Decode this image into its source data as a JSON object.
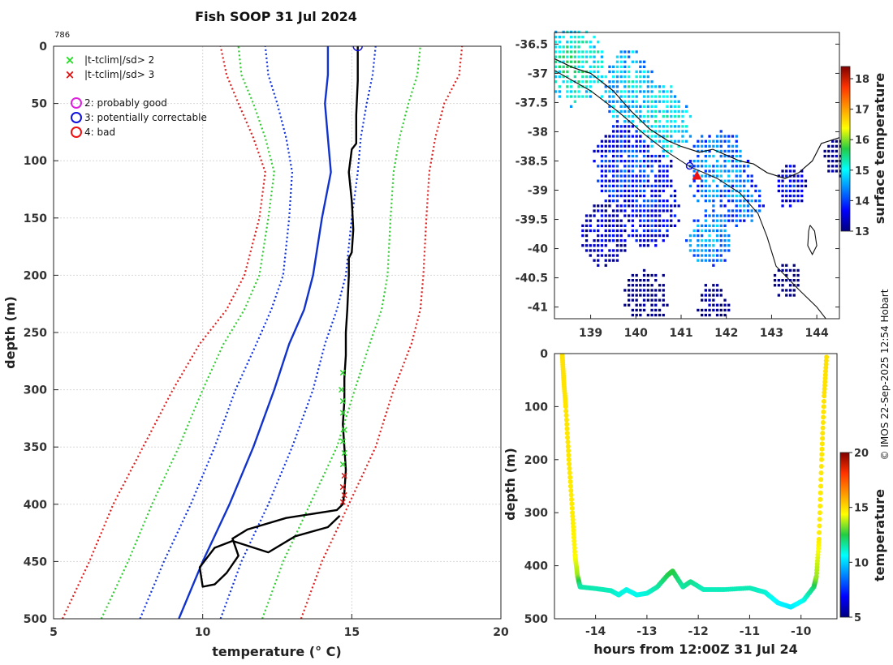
{
  "figure": {
    "title": "Fish SOOP 31 Jul 2024",
    "profile_id": "786",
    "credit": "© IMOS 22-Sep-2025 12:54 Hobart"
  },
  "chart_data": [
    {
      "id": "profile",
      "type": "line",
      "xlabel": "temperature (° C)",
      "ylabel": "depth (m)",
      "xlim": [
        5,
        20
      ],
      "ylim": [
        0,
        500
      ],
      "y_reversed": true,
      "xticks": [
        5,
        10,
        15,
        20
      ],
      "yticks": [
        0,
        50,
        100,
        150,
        200,
        250,
        300,
        350,
        400,
        450,
        500
      ],
      "grid": true,
      "legend": {
        "position": "top-left",
        "entries": [
          {
            "label": "|t-tclim|/sd> 2",
            "marker": "x",
            "color": "#22dd22"
          },
          {
            "label": "|t-tclim|/sd> 3",
            "marker": "x",
            "color": "#dd1111"
          },
          {
            "label": "2: probably good",
            "marker": "o",
            "color": "#dd22dd"
          },
          {
            "label": "3: potentially correctable",
            "marker": "o",
            "color": "#1111dd"
          },
          {
            "label": "4: bad",
            "marker": "o",
            "color": "#ee1111"
          }
        ]
      },
      "series": [
        {
          "name": "clim-3sd-low",
          "color": "#dd2222",
          "style": "dotted",
          "points": [
            [
              5.3,
              500
            ],
            [
              6.2,
              450
            ],
            [
              7.0,
              400
            ],
            [
              8.0,
              350
            ],
            [
              9.0,
              300
            ],
            [
              9.9,
              260
            ],
            [
              10.8,
              230
            ],
            [
              11.4,
              200
            ],
            [
              11.9,
              150
            ],
            [
              12.1,
              110
            ],
            [
              11.7,
              80
            ],
            [
              11.2,
              50
            ],
            [
              10.8,
              25
            ],
            [
              10.6,
              0
            ]
          ]
        },
        {
          "name": "clim-2sd-low",
          "color": "#33cc33",
          "style": "dotted",
          "points": [
            [
              6.6,
              500
            ],
            [
              7.5,
              450
            ],
            [
              8.3,
              400
            ],
            [
              9.2,
              350
            ],
            [
              10.0,
              300
            ],
            [
              10.7,
              260
            ],
            [
              11.4,
              230
            ],
            [
              11.9,
              200
            ],
            [
              12.2,
              150
            ],
            [
              12.4,
              110
            ],
            [
              12.1,
              80
            ],
            [
              11.7,
              50
            ],
            [
              11.3,
              25
            ],
            [
              11.2,
              0
            ]
          ]
        },
        {
          "name": "clim-1sd-low",
          "color": "#1133dd",
          "style": "dotted",
          "points": [
            [
              7.9,
              500
            ],
            [
              8.7,
              450
            ],
            [
              9.6,
              400
            ],
            [
              10.4,
              350
            ],
            [
              11.1,
              300
            ],
            [
              11.8,
              260
            ],
            [
              12.3,
              230
            ],
            [
              12.7,
              200
            ],
            [
              12.9,
              150
            ],
            [
              13.0,
              110
            ],
            [
              12.8,
              80
            ],
            [
              12.5,
              50
            ],
            [
              12.2,
              25
            ],
            [
              12.1,
              0
            ]
          ]
        },
        {
          "name": "climatology-mean",
          "color": "#1133cc",
          "style": "solid",
          "points": [
            [
              9.2,
              500
            ],
            [
              10.0,
              450
            ],
            [
              10.9,
              400
            ],
            [
              11.7,
              350
            ],
            [
              12.4,
              300
            ],
            [
              12.9,
              260
            ],
            [
              13.4,
              230
            ],
            [
              13.7,
              200
            ],
            [
              14.0,
              150
            ],
            [
              14.3,
              110
            ],
            [
              14.2,
              80
            ],
            [
              14.1,
              50
            ],
            [
              14.2,
              25
            ],
            [
              14.2,
              0
            ]
          ]
        },
        {
          "name": "clim-1sd-high",
          "color": "#1133dd",
          "style": "dotted",
          "points": [
            [
              10.6,
              500
            ],
            [
              11.3,
              450
            ],
            [
              12.2,
              400
            ],
            [
              13.0,
              350
            ],
            [
              13.7,
              300
            ],
            [
              14.1,
              260
            ],
            [
              14.5,
              230
            ],
            [
              14.8,
              200
            ],
            [
              15.0,
              150
            ],
            [
              15.2,
              110
            ],
            [
              15.3,
              80
            ],
            [
              15.5,
              50
            ],
            [
              15.7,
              25
            ],
            [
              15.8,
              0
            ]
          ]
        },
        {
          "name": "clim-2sd-high",
          "color": "#33cc33",
          "style": "dotted",
          "points": [
            [
              12.0,
              500
            ],
            [
              12.7,
              450
            ],
            [
              13.6,
              400
            ],
            [
              14.5,
              350
            ],
            [
              15.1,
              300
            ],
            [
              15.6,
              260
            ],
            [
              16.0,
              230
            ],
            [
              16.2,
              200
            ],
            [
              16.3,
              150
            ],
            [
              16.4,
              110
            ],
            [
              16.6,
              80
            ],
            [
              16.9,
              50
            ],
            [
              17.2,
              25
            ],
            [
              17.3,
              0
            ]
          ]
        },
        {
          "name": "clim-3sd-high",
          "color": "#dd2222",
          "style": "dotted",
          "points": [
            [
              13.3,
              500
            ],
            [
              14.0,
              450
            ],
            [
              14.9,
              400
            ],
            [
              15.8,
              350
            ],
            [
              16.4,
              300
            ],
            [
              17.0,
              260
            ],
            [
              17.3,
              230
            ],
            [
              17.4,
              200
            ],
            [
              17.5,
              150
            ],
            [
              17.6,
              110
            ],
            [
              17.8,
              80
            ],
            [
              18.1,
              50
            ],
            [
              18.6,
              25
            ],
            [
              18.7,
              0
            ]
          ]
        },
        {
          "name": "observed",
          "color": "#000000",
          "style": "solid",
          "points": [
            [
              15.2,
              0
            ],
            [
              15.2,
              30
            ],
            [
              15.15,
              60
            ],
            [
              15.15,
              85
            ],
            [
              15.0,
              90
            ],
            [
              14.9,
              110
            ],
            [
              15.0,
              135
            ],
            [
              15.05,
              160
            ],
            [
              15.0,
              180
            ],
            [
              14.9,
              185
            ],
            [
              14.9,
              200
            ],
            [
              14.85,
              230
            ],
            [
              14.8,
              250
            ],
            [
              14.8,
              270
            ],
            [
              14.75,
              290
            ],
            [
              14.75,
              310
            ],
            [
              14.7,
              330
            ],
            [
              14.75,
              350
            ],
            [
              14.8,
              370
            ],
            [
              14.75,
              390
            ],
            [
              14.7,
              400
            ],
            [
              14.5,
              405
            ],
            [
              12.8,
              412
            ],
            [
              11.5,
              422
            ],
            [
              11.0,
              430
            ],
            [
              11.2,
              445
            ],
            [
              10.8,
              460
            ],
            [
              10.4,
              470
            ],
            [
              10.0,
              472
            ],
            [
              9.9,
              455
            ],
            [
              10.4,
              438
            ],
            [
              11.0,
              432
            ],
            [
              12.2,
              442
            ],
            [
              13.1,
              428
            ],
            [
              14.2,
              420
            ],
            [
              14.6,
              410
            ]
          ]
        }
      ],
      "flags": {
        "green_x": [
          [
            14.7,
            285
          ],
          [
            14.65,
            300
          ],
          [
            14.7,
            310
          ],
          [
            14.7,
            320
          ],
          [
            14.75,
            335
          ],
          [
            14.7,
            345
          ],
          [
            14.75,
            355
          ],
          [
            14.7,
            365
          ]
        ],
        "red_x": [
          [
            14.75,
            375
          ],
          [
            14.7,
            385
          ],
          [
            14.75,
            392
          ],
          [
            14.7,
            398
          ]
        ],
        "blue_circle": [
          [
            15.2,
            0
          ]
        ]
      }
    },
    {
      "id": "sst-map",
      "type": "heatmap",
      "xlim": [
        138.2,
        144.5
      ],
      "ylim": [
        -41.2,
        -36.3
      ],
      "xticks": [
        139,
        140,
        141,
        142,
        143,
        144
      ],
      "yticks": [
        -36.5,
        -37,
        -37.5,
        -38,
        -38.5,
        -39,
        -39.5,
        -40,
        -40.5,
        -41
      ],
      "colorbar": {
        "label": "surface temperature",
        "min": 13,
        "max": 18.4,
        "ticks": [
          13,
          14,
          15,
          16,
          17,
          18
        ]
      },
      "track_marker": {
        "lon": 141.35,
        "lat": -38.75,
        "color": "#ee1111"
      }
    },
    {
      "id": "time-depth",
      "type": "scatter",
      "xlabel": "hours from 12:00Z 31 Jul 24",
      "ylabel": "depth (m)",
      "xlim": [
        -14.8,
        -9.3
      ],
      "ylim": [
        0,
        500
      ],
      "y_reversed": true,
      "xticks": [
        -14,
        -13,
        -12,
        -11,
        -10
      ],
      "yticks": [
        0,
        100,
        200,
        300,
        400,
        500
      ],
      "colorbar": {
        "label": "temperature",
        "min": 5,
        "max": 20,
        "ticks": [
          5,
          10,
          15,
          20
        ]
      },
      "points": [
        [
          -14.65,
          0,
          14.9
        ],
        [
          -14.62,
          50,
          14.9
        ],
        [
          -14.58,
          100,
          14.85
        ],
        [
          -14.52,
          200,
          14.8
        ],
        [
          -14.45,
          300,
          14.7
        ],
        [
          -14.4,
          380,
          14.5
        ],
        [
          -14.35,
          420,
          13.5
        ],
        [
          -14.3,
          440,
          11.5
        ],
        [
          -14.0,
          443,
          11.4
        ],
        [
          -13.7,
          447,
          11.3
        ],
        [
          -13.55,
          455,
          11.0
        ],
        [
          -13.4,
          445,
          10.9
        ],
        [
          -13.2,
          455,
          10.8
        ],
        [
          -13.0,
          452,
          11.0
        ],
        [
          -12.8,
          440,
          11.5
        ],
        [
          -12.6,
          418,
          12.3
        ],
        [
          -12.5,
          410,
          12.6
        ],
        [
          -12.3,
          440,
          11.5
        ],
        [
          -12.15,
          430,
          11.8
        ],
        [
          -11.9,
          445,
          11.3
        ],
        [
          -11.5,
          445,
          11.3
        ],
        [
          -11.0,
          442,
          11.4
        ],
        [
          -10.7,
          450,
          11.1
        ],
        [
          -10.45,
          470,
          10.5
        ],
        [
          -10.2,
          478,
          10.3
        ],
        [
          -9.95,
          465,
          10.8
        ],
        [
          -9.75,
          440,
          12.0
        ],
        [
          -9.7,
          420,
          13.5
        ],
        [
          -9.65,
          350,
          14.7
        ],
        [
          -9.6,
          200,
          14.8
        ],
        [
          -9.55,
          80,
          14.9
        ],
        [
          -9.5,
          0,
          14.9
        ]
      ]
    }
  ]
}
